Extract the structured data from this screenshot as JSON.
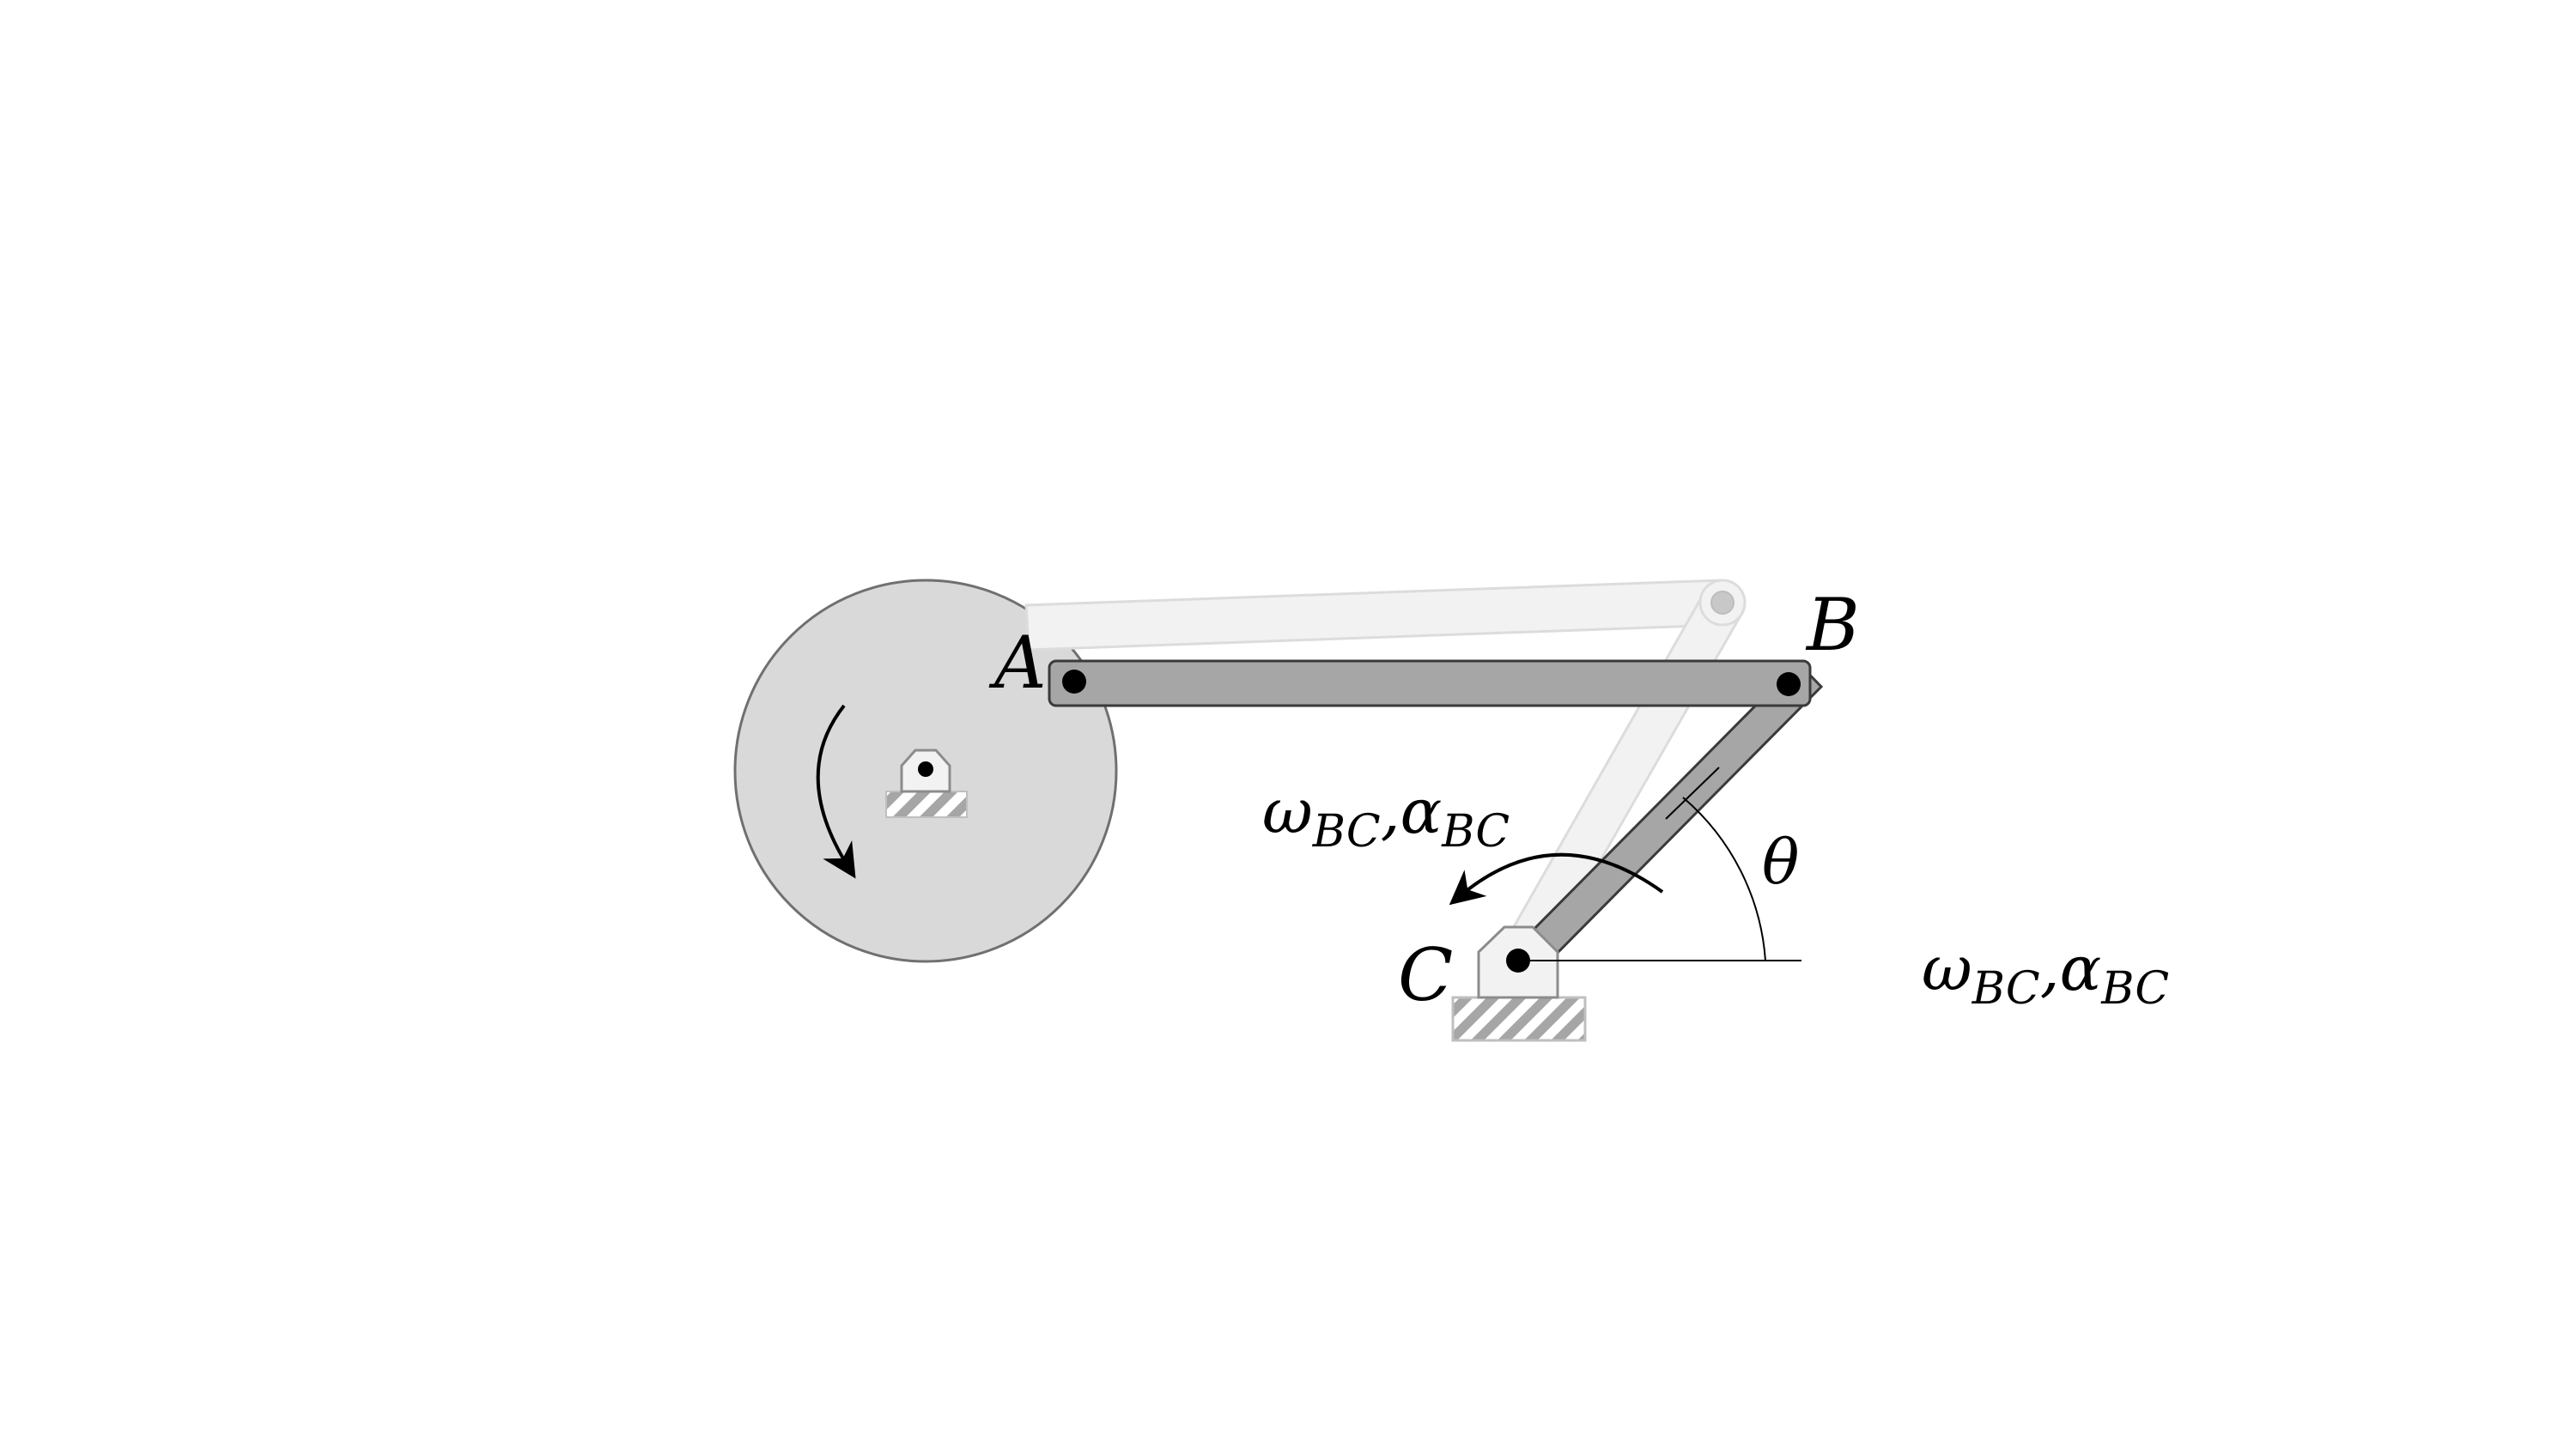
{
  "diagram": {
    "points": {
      "A": "A",
      "B": "B",
      "C": "C"
    },
    "angle_label": "θ",
    "omega_symbol": "ω",
    "alpha_symbol": "α",
    "subscript": "BC",
    "comma": ",",
    "colors": {
      "disk_fill": "#d9d9d9",
      "disk_stroke": "#707070",
      "link_fill": "#a6a6a6",
      "link_stroke": "#3a3a3a",
      "ghost_fill": "#f2f2f2",
      "ghost_stroke": "#dcdcdc",
      "support_fill": "#f2f2f2",
      "support_stroke": "#8c8c8c",
      "hatch": "#a6a6a6",
      "pin": "#000000"
    }
  }
}
